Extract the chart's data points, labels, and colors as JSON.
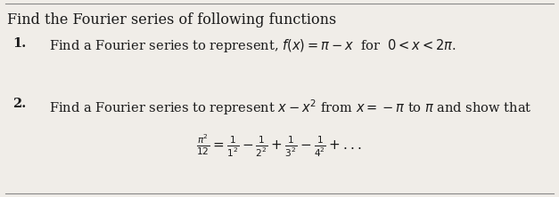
{
  "title": "Find the Fourier series of following functions",
  "item1_label": "1.",
  "item1_text": "Find a Fourier series to represent, $f(x) = \\pi - x$  for  $0 < x < 2\\pi$.",
  "item2_label": "2.",
  "item2_text": "Find a Fourier series to represent $x - x^2$ from $x =  -\\pi$ to $\\pi$ and show that",
  "formula": "$\\frac{\\pi^2}{12} = \\frac{1}{1^2} - \\frac{1}{2^2} + \\frac{1}{3^2} - \\frac{1}{4^2} + ...$",
  "bg_color": "#f0ede8",
  "text_color": "#1a1a1a",
  "title_fontsize": 11.5,
  "item_fontsize": 10.5,
  "formula_fontsize": 11
}
